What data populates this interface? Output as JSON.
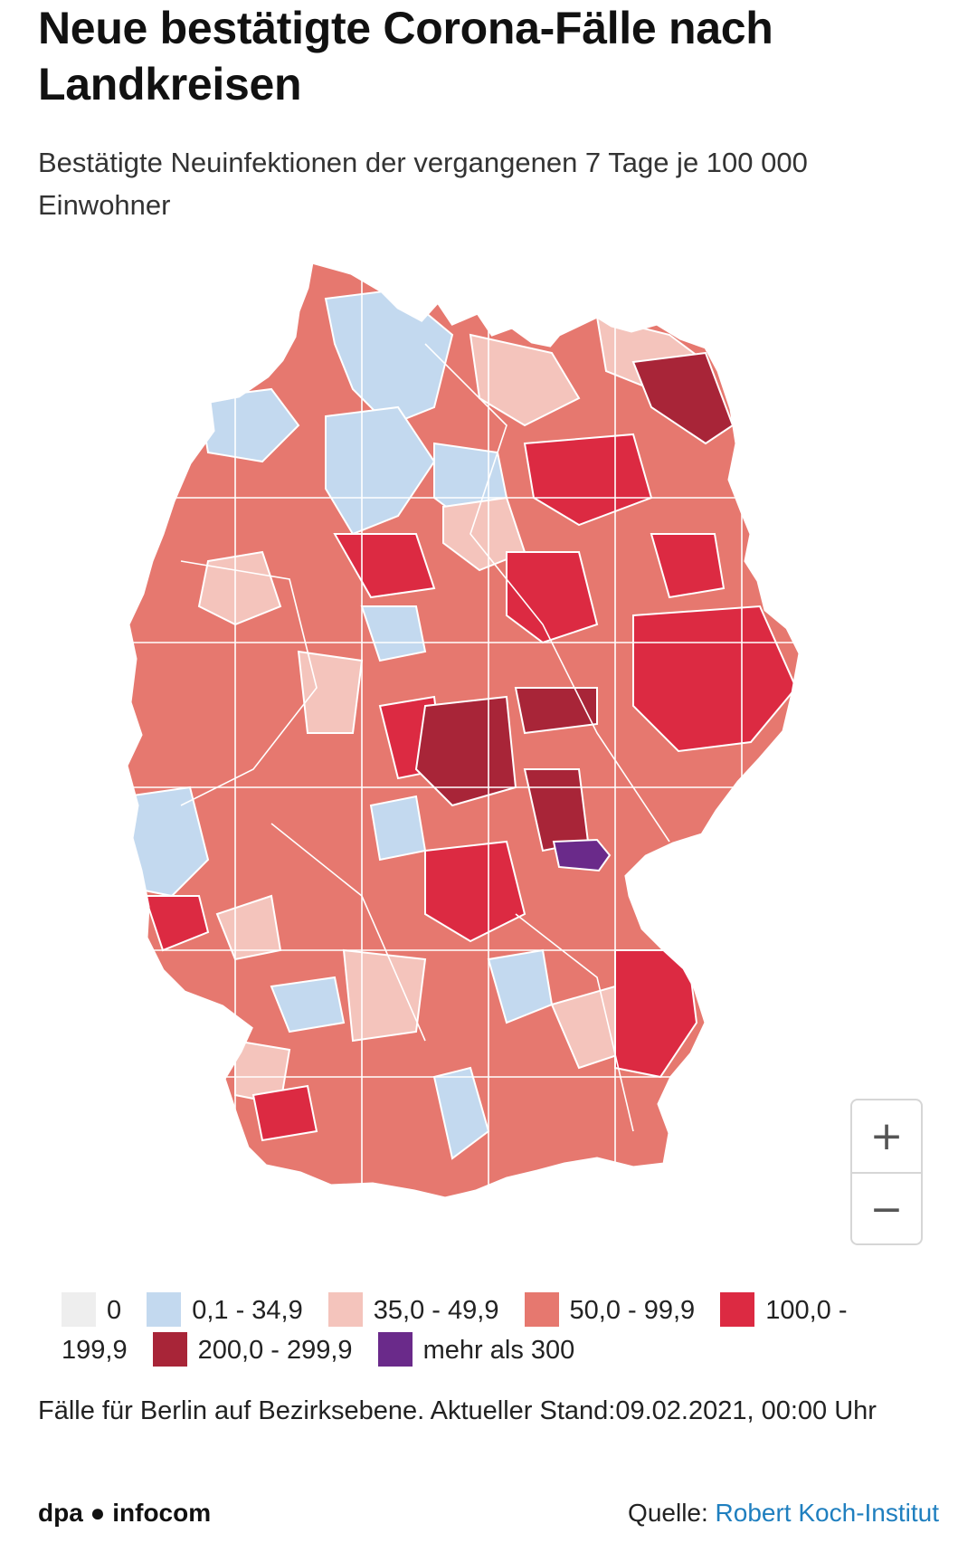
{
  "header": {
    "title": "Neue bestätigte Corona-Fälle nach Landkreisen",
    "subtitle": "Bestätigte Neuinfektionen der vergangenen 7 Tage je 100 000 Einwohner"
  },
  "map": {
    "zoom_in_label": "+",
    "zoom_out_label": "−",
    "colors": {
      "none": "#eeeeee",
      "low": "#c3d9ef",
      "mid_low": "#f4c4bc",
      "mid": "#e6786f",
      "high": "#dc2a42",
      "very_high": "#a82538",
      "extreme": "#6a2a8a",
      "border": "#ffffff"
    }
  },
  "legend": {
    "items": [
      {
        "label": "0",
        "color": "#eeeeee"
      },
      {
        "label": "0,1 - 34,9",
        "color": "#c3d9ef"
      },
      {
        "label": "35,0 - 49,9",
        "color": "#f4c4bc"
      },
      {
        "label": "50,0 - 99,9",
        "color": "#e6786f"
      },
      {
        "label": "100,0 - 199,9",
        "color": "#dc2a42"
      },
      {
        "label": "200,0 - 299,9",
        "color": "#a82538"
      },
      {
        "label": "mehr als 300",
        "color": "#6a2a8a"
      }
    ]
  },
  "note": "Fälle für Berlin auf Bezirksebene. Aktueller Stand:09.02.2021, 00:00 Uhr",
  "footer": {
    "brand": "dpa ● infocom",
    "source_prefix": "Quelle: ",
    "source_link": "Robert Koch-Institut"
  }
}
